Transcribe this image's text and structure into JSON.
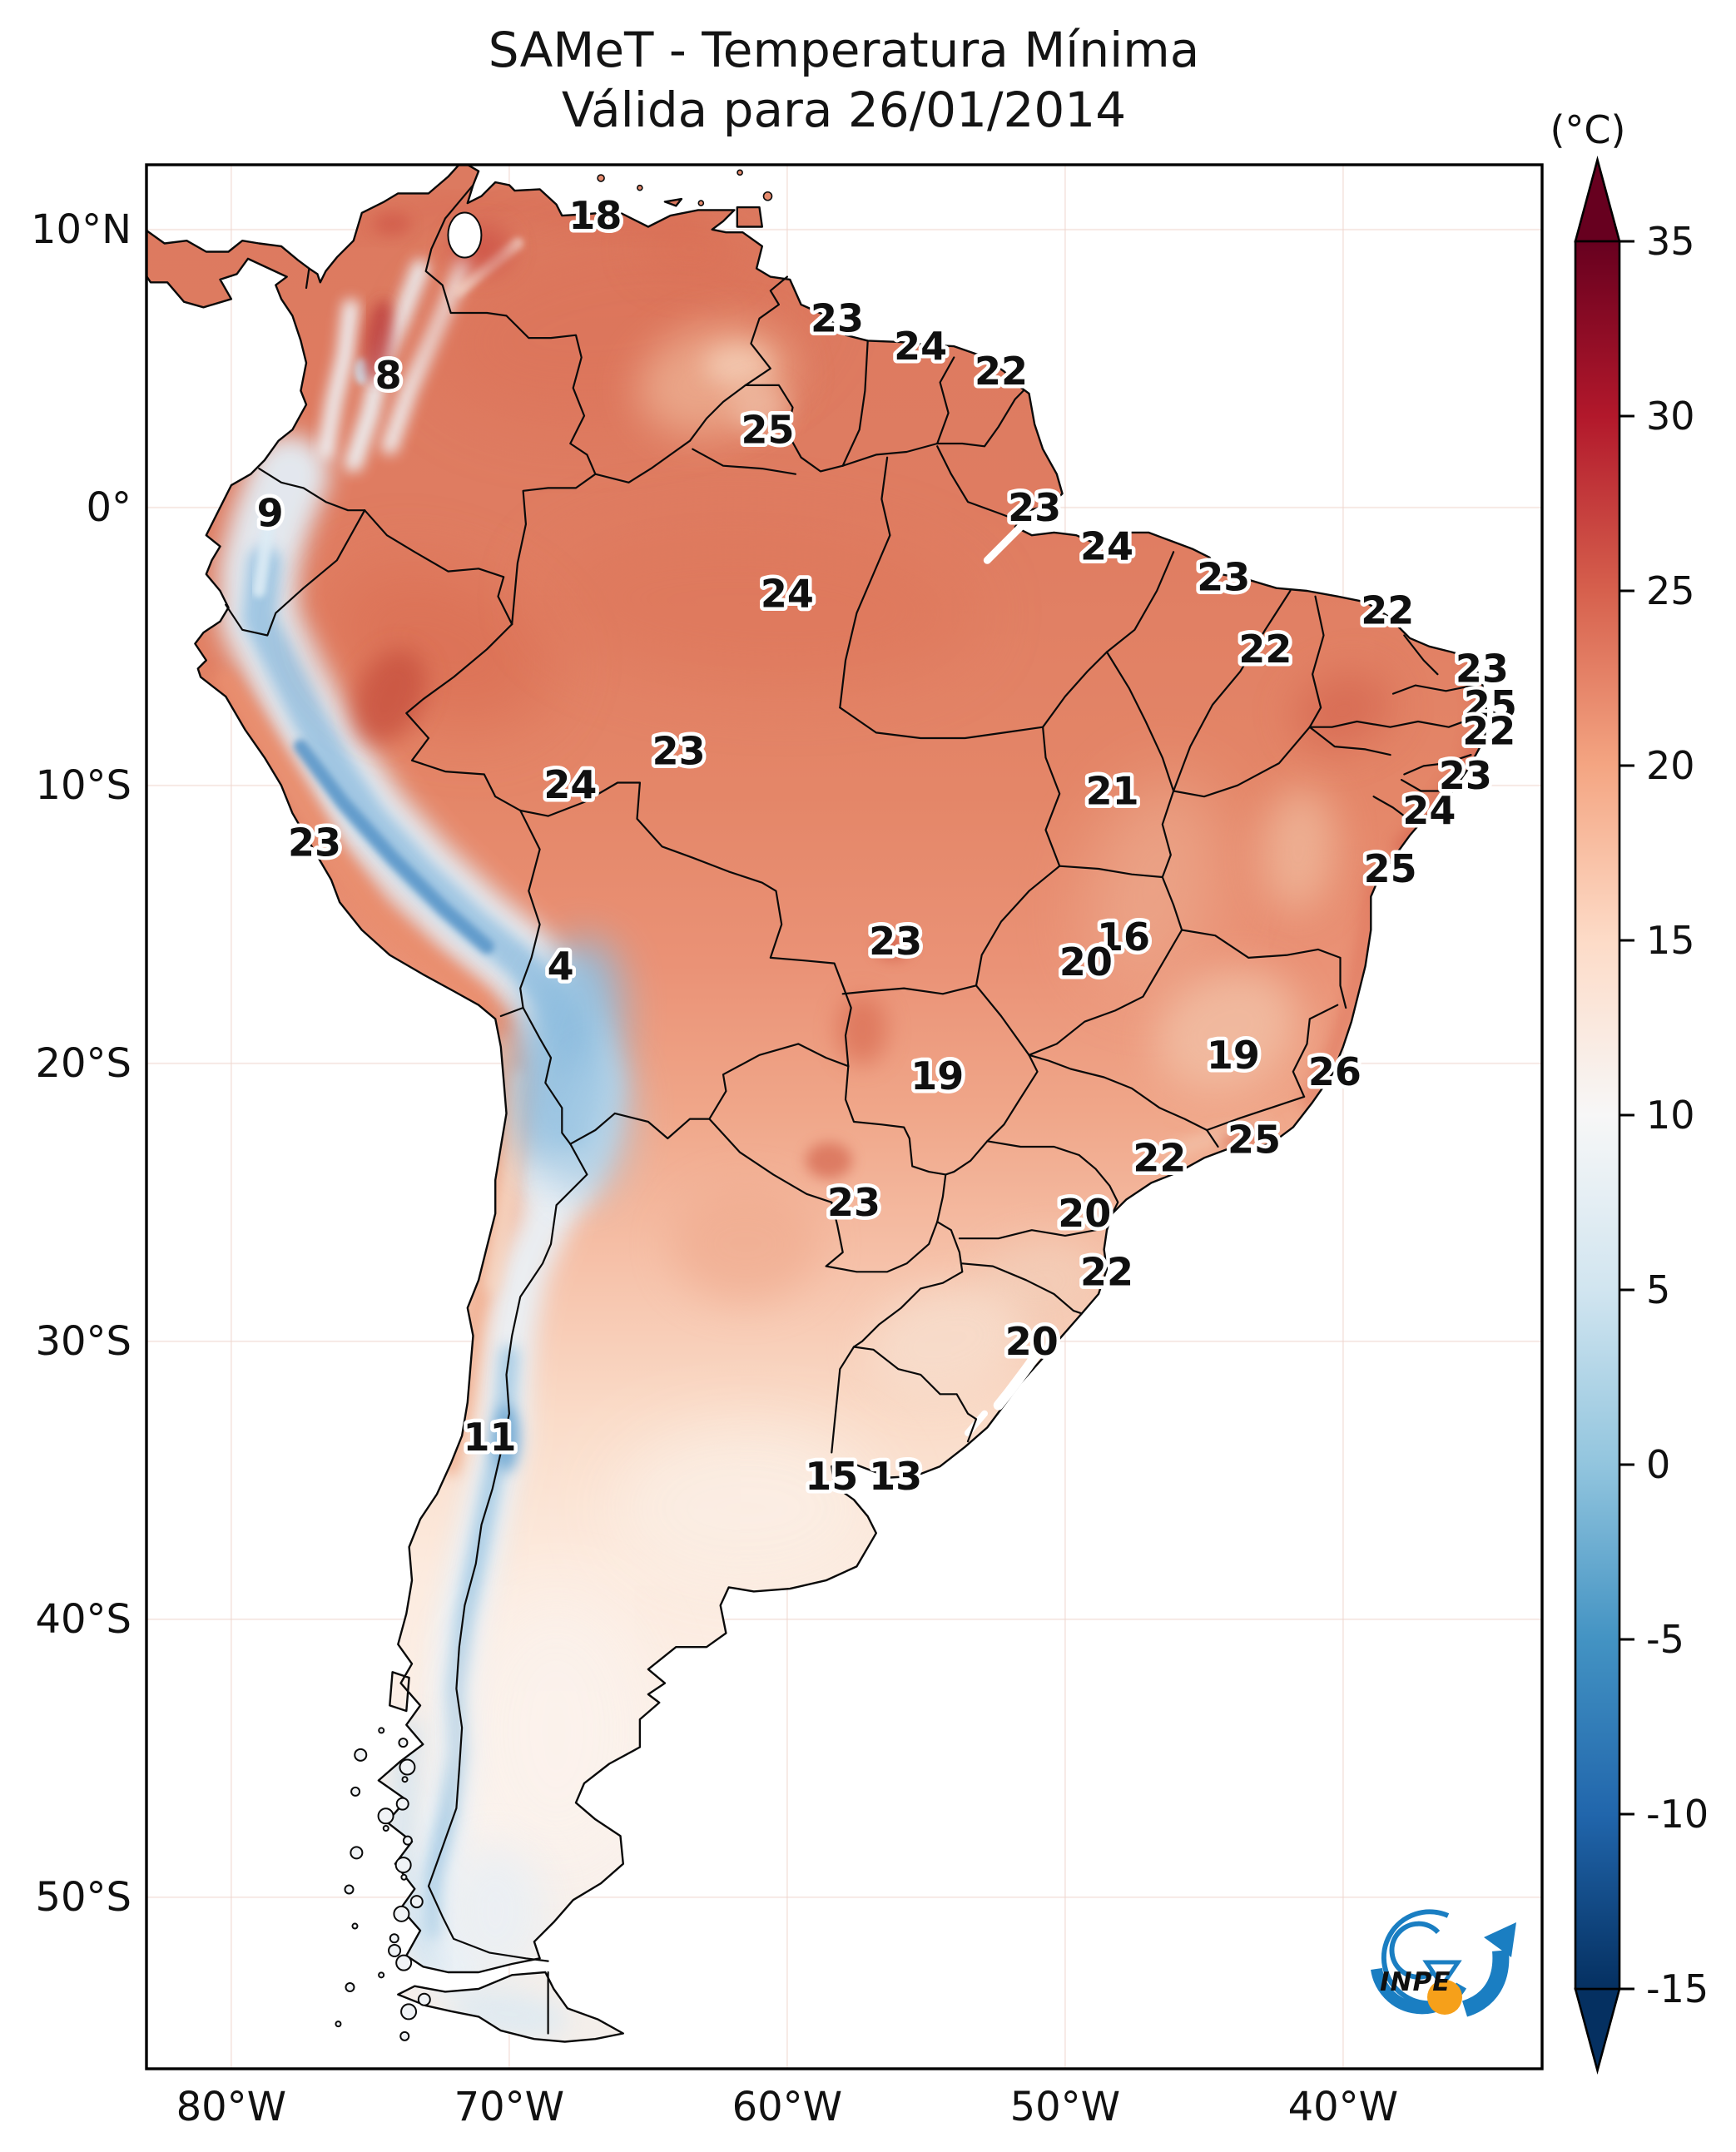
{
  "title": {
    "line1": "SAMeT - Temperatura Mínima",
    "line2": "Válida para 26/01/2014"
  },
  "colorbar": {
    "unit": "(°C)",
    "extend": "both",
    "ticks": [
      "35",
      "30",
      "25",
      "20",
      "15",
      "10",
      "5",
      "0",
      "-5",
      "-10",
      "-15"
    ],
    "palette_top_to_bottom": [
      "#67001f",
      "#b2182b",
      "#d6604d",
      "#f4a582",
      "#fddbc7",
      "#f7f7f7",
      "#d1e5f0",
      "#92c5de",
      "#4393c3",
      "#2166ac",
      "#053061"
    ]
  },
  "axes": {
    "x_ticks": [
      {
        "label": "80°W",
        "lon": -80
      },
      {
        "label": "70°W",
        "lon": -70
      },
      {
        "label": "60°W",
        "lon": -60
      },
      {
        "label": "50°W",
        "lon": -50
      },
      {
        "label": "40°W",
        "lon": -40
      }
    ],
    "y_ticks": [
      {
        "label": "10°N",
        "lat": 10
      },
      {
        "label": "0°",
        "lat": 0
      },
      {
        "label": "10°S",
        "lat": -10
      },
      {
        "label": "20°S",
        "lat": -20
      },
      {
        "label": "30°S",
        "lat": -30
      },
      {
        "label": "40°S",
        "lat": -40
      },
      {
        "label": "50°S",
        "lat": -50
      }
    ]
  },
  "chart_data": {
    "type": "heatmap",
    "title": "SAMeT - Temperatura Mínima",
    "subtitle": "Válida para 26/01/2014",
    "unit": "°C",
    "colorbar_range": [
      -15,
      35
    ],
    "colorbar_ticks": [
      35,
      30,
      25,
      20,
      15,
      10,
      5,
      0,
      -5,
      -10,
      -15
    ],
    "legend_position": "right",
    "grid": "faint 10-degree graticule",
    "stations": [
      {
        "value": "18",
        "lon": -66.9,
        "lat": 10.5
      },
      {
        "value": "23",
        "lon": -58.2,
        "lat": 6.8
      },
      {
        "value": "24",
        "lon": -55.2,
        "lat": 5.8
      },
      {
        "value": "22",
        "lon": -52.3,
        "lat": 4.9
      },
      {
        "value": "8",
        "lon": -74.35,
        "lat": 4.75
      },
      {
        "value": "25",
        "lon": -60.7,
        "lat": 2.8
      },
      {
        "value": "9",
        "lon": -78.6,
        "lat": -0.2
      },
      {
        "value": "23",
        "lon": -51.1,
        "lat": 0.0
      },
      {
        "value": "24",
        "lon": -48.5,
        "lat": -1.4
      },
      {
        "value": "23",
        "lon": -44.3,
        "lat": -2.5
      },
      {
        "value": "22",
        "lon": -38.4,
        "lat": -3.7
      },
      {
        "value": "24",
        "lon": -60.0,
        "lat": -3.1
      },
      {
        "value": "22",
        "lon": -42.8,
        "lat": -5.1
      },
      {
        "value": "23",
        "lon": -35.0,
        "lat": -5.8
      },
      {
        "value": "25",
        "lon": -34.7,
        "lat": -7.1
      },
      {
        "value": "22",
        "lon": -34.75,
        "lat": -8.05
      },
      {
        "value": "23",
        "lon": -35.6,
        "lat": -9.65
      },
      {
        "value": "24",
        "lon": -36.9,
        "lat": -10.9
      },
      {
        "value": "23",
        "lon": -63.9,
        "lat": -8.76
      },
      {
        "value": "24",
        "lon": -67.8,
        "lat": -9.97
      },
      {
        "value": "21",
        "lon": -48.3,
        "lat": -10.2
      },
      {
        "value": "25",
        "lon": -38.3,
        "lat": -13.0
      },
      {
        "value": "23",
        "lon": -77.0,
        "lat": -12.05
      },
      {
        "value": "4",
        "lon": -68.15,
        "lat": -16.5
      },
      {
        "value": "23",
        "lon": -56.1,
        "lat": -15.6
      },
      {
        "value": "16",
        "lon": -47.9,
        "lat": -15.45
      },
      {
        "value": "20",
        "lon": -49.25,
        "lat": -16.35
      },
      {
        "value": "19",
        "lon": -54.6,
        "lat": -20.45
      },
      {
        "value": "19",
        "lon": -43.95,
        "lat": -19.7
      },
      {
        "value": "26",
        "lon": -40.3,
        "lat": -20.3
      },
      {
        "value": "25",
        "lon": -43.2,
        "lat": -22.75
      },
      {
        "value": "22",
        "lon": -46.6,
        "lat": -23.4
      },
      {
        "value": "23",
        "lon": -57.6,
        "lat": -25.0
      },
      {
        "value": "20",
        "lon": -49.3,
        "lat": -25.4
      },
      {
        "value": "22",
        "lon": -48.5,
        "lat": -27.5
      },
      {
        "value": "20",
        "lon": -51.2,
        "lat": -30.0
      },
      {
        "value": "11",
        "lon": -70.7,
        "lat": -33.45
      },
      {
        "value": "15",
        "lon": -58.4,
        "lat": -34.85
      },
      {
        "value": "13",
        "lon": -56.1,
        "lat": -34.85
      }
    ]
  },
  "logo": {
    "text": "INPE",
    "blue": "#1a7ec2",
    "orange": "#f6a01a"
  }
}
